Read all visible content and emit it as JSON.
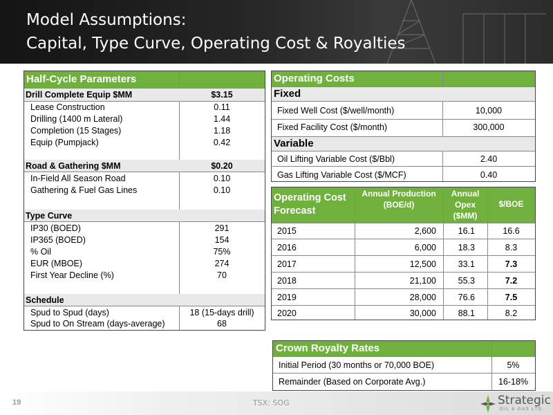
{
  "title": {
    "line1": "Model Assumptions:",
    "line2": "Capital, Type Curve, Operating Cost & Royalties"
  },
  "half_cycle": {
    "header": "Half-Cycle Parameters",
    "rows": [
      {
        "label": "Drill Complete Equip $MM",
        "value": "$3.15",
        "bold": true
      },
      {
        "label": "Lease Construction",
        "value": "0.11"
      },
      {
        "label": "Drilling (1400 m Lateral)",
        "value": "1.44"
      },
      {
        "label": "Completion (15 Stages)",
        "value": "1.18"
      },
      {
        "label": "Equip (Pumpjack)",
        "value": "0.42"
      },
      {
        "label": "Road & Gathering $MM",
        "value": "$0.20",
        "bold": true
      },
      {
        "label": "In-Field All Season Road",
        "value": "0.10"
      },
      {
        "label": "Gathering & Fuel Gas Lines",
        "value": "0.10"
      },
      {
        "label": "Type Curve",
        "value": "",
        "bold": true
      },
      {
        "label": "IP30 (BOED)",
        "value": "291"
      },
      {
        "label": "IP365 (BOED)",
        "value": "154"
      },
      {
        "label": "% Oil",
        "value": "75%"
      },
      {
        "label": "EUR (MBOE)",
        "value": "274"
      },
      {
        "label": "First Year Decline (%)",
        "value": "70"
      },
      {
        "label": "Schedule",
        "value": "",
        "bold": true
      },
      {
        "label": "Spud to Spud (days)",
        "value": "18 (15-days drill)"
      },
      {
        "label": "Spud to On Stream (days-average)",
        "value": "68"
      }
    ]
  },
  "operating_costs": {
    "header": "Operating Costs",
    "fixed_label": "Fixed",
    "variable_label": "Variable",
    "fixed": [
      {
        "label": "Fixed Well Cost ($/well/month)",
        "value": "10,000"
      },
      {
        "label": "Fixed Facility Cost ($/month)",
        "value": "300,000"
      }
    ],
    "variable": [
      {
        "label": "Oil Lifting Variable Cost ($/Bbl)",
        "value": "2.40"
      },
      {
        "label": "Gas Lifting Variable Cost ($/MCF)",
        "value": "0.40"
      }
    ]
  },
  "forecast": {
    "header": "Operating Cost Forecast",
    "col_production": "Annual Production (BOE/d)",
    "col_opex": "Annual Opex ($MM)",
    "col_boe": "$/BOE",
    "rows": [
      {
        "year": "2015",
        "production": "2,600",
        "opex": "16.1",
        "boe": "16.6",
        "bold": false
      },
      {
        "year": "2016",
        "production": "6,000",
        "opex": "18.3",
        "boe": "8.3",
        "bold": false
      },
      {
        "year": "2017",
        "production": "12,500",
        "opex": "33.1",
        "boe": "7.3",
        "bold": true
      },
      {
        "year": "2018",
        "production": "21,100",
        "opex": "55.3",
        "boe": "7.2",
        "bold": true
      },
      {
        "year": "2019",
        "production": "28,000",
        "opex": "76.6",
        "boe": "7.5",
        "bold": true
      },
      {
        "year": "2020",
        "production": "30,000",
        "opex": "88.1",
        "boe": "8.2",
        "bold": false
      }
    ]
  },
  "royalty": {
    "header": "Crown Royalty Rates",
    "rows": [
      {
        "label": "Initial Period (30 months or 70,000 BOE)",
        "value": "5%"
      },
      {
        "label": "Remainder (Based on Corporate Avg.)",
        "value": "16-18%"
      }
    ]
  },
  "footer": {
    "page": "19",
    "ticker": "TSX: SOG",
    "logo_name": "Strategic",
    "logo_sub": "OIL & GAS LTD."
  },
  "colors": {
    "header_green": "#6fb13c",
    "band_grey": "#e9e9e9",
    "title_bar": "#1e1e1e"
  }
}
